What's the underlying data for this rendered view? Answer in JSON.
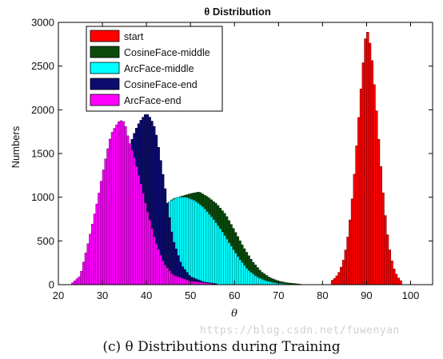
{
  "chart_data": {
    "type": "histogram",
    "title": "θ Distribution",
    "xlabel": "θ",
    "ylabel": "Numbers",
    "xlim": [
      20,
      105
    ],
    "ylim": [
      0,
      3000
    ],
    "xticks": [
      "20",
      "30",
      "40",
      "50",
      "60",
      "70",
      "80",
      "90",
      "100"
    ],
    "yticks": [
      "0",
      "500",
      "1000",
      "1500",
      "2000",
      "2500",
      "3000"
    ],
    "legend_position": "top-left",
    "series": [
      {
        "name": "start",
        "color": "#ff0000",
        "dark": "#7a0000",
        "x": [
          82,
          83,
          84,
          85,
          86,
          87,
          88,
          89,
          90,
          91,
          92,
          93,
          94,
          95,
          96,
          97,
          98
        ],
        "values": [
          40,
          80,
          160,
          320,
          620,
          1100,
          1750,
          2400,
          2950,
          2700,
          2150,
          1500,
          900,
          460,
          210,
          90,
          30
        ]
      },
      {
        "name": "CosineFace-middle",
        "color": "#0b4a0b",
        "dark": "#062b06",
        "x": [
          25,
          28,
          31,
          34,
          37,
          40,
          43,
          46,
          48,
          50,
          52,
          54,
          56,
          58,
          60,
          62,
          64,
          66,
          68,
          70,
          72,
          75
        ],
        "values": [
          20,
          80,
          180,
          320,
          480,
          650,
          850,
          980,
          1010,
          1040,
          1060,
          1000,
          920,
          800,
          620,
          430,
          270,
          150,
          80,
          40,
          20,
          5
        ]
      },
      {
        "name": "ArcFace-middle",
        "color": "#00ffff",
        "dark": "#008a8a",
        "x": [
          25,
          28,
          31,
          34,
          37,
          40,
          43,
          45,
          47,
          49,
          51,
          53,
          55,
          57,
          59,
          61,
          63,
          65,
          67,
          69,
          72
        ],
        "values": [
          20,
          70,
          170,
          300,
          460,
          640,
          820,
          940,
          1000,
          1000,
          960,
          880,
          760,
          620,
          460,
          300,
          170,
          90,
          45,
          20,
          5
        ]
      },
      {
        "name": "CosineFace-end",
        "color": "#0c0c6e",
        "dark": "#05053a",
        "x": [
          25,
          28,
          31,
          33,
          35,
          37,
          38,
          39,
          40,
          41,
          42,
          43,
          44,
          45,
          46,
          48,
          50,
          53,
          56
        ],
        "values": [
          30,
          200,
          650,
          1050,
          1400,
          1700,
          1820,
          1900,
          1960,
          1900,
          1780,
          1500,
          1180,
          850,
          520,
          220,
          90,
          30,
          8
        ]
      },
      {
        "name": "ArcFace-end",
        "color": "#ff00ff",
        "dark": "#7a007a",
        "x": [
          23,
          25,
          27,
          29,
          30,
          31,
          32,
          33,
          34,
          35,
          36,
          37,
          38,
          39,
          40,
          42,
          44,
          46,
          50,
          55
        ],
        "values": [
          10,
          100,
          520,
          980,
          1250,
          1500,
          1720,
          1810,
          1880,
          1860,
          1650,
          1500,
          1300,
          1100,
          880,
          500,
          240,
          110,
          40,
          10
        ]
      }
    ]
  },
  "caption": "(c) θ Distributions during Training",
  "watermark": "https://blog.csdn.net/fuwenyan"
}
